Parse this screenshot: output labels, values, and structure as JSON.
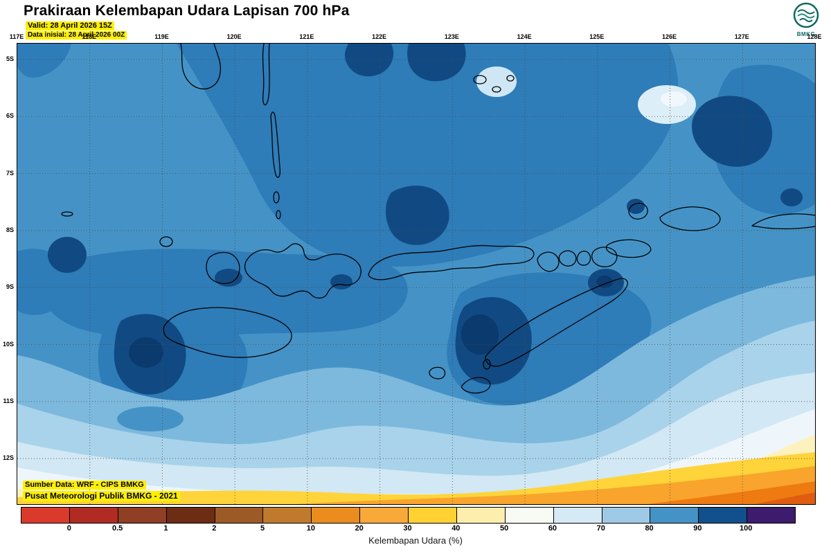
{
  "header": {
    "title": "Prakiraan Kelembapan Udara Lapisan 700 hPa",
    "valid_label": "Valid: 28 April 2026 15Z",
    "init_label": "Data inisial: 28 April 2026 00Z",
    "logo_text": "BMKG"
  },
  "map": {
    "lon_labels": [
      "117E",
      "118E",
      "119E",
      "120E",
      "121E",
      "122E",
      "123E",
      "124E",
      "125E",
      "126E",
      "127E",
      "128E"
    ],
    "lat_labels": [
      "5S",
      "6S",
      "7S",
      "8S",
      "9S",
      "10S",
      "11S",
      "12S"
    ],
    "source_line1": "Sumber Data: WRF - CIPS BMKG",
    "source_line2": "Pusat Meteorologi Publik BMKG - 2021"
  },
  "colorbar": {
    "title": "Kelembapan Udara (%)",
    "tick_labels": [
      "0",
      "0.5",
      "1",
      "2",
      "5",
      "10",
      "20",
      "30",
      "40",
      "50",
      "60",
      "70",
      "80",
      "90",
      "100"
    ],
    "cell_colors": [
      "#d93a2c",
      "#b02c22",
      "#8f3f24",
      "#6d2c14",
      "#9c5a26",
      "#c07a2e",
      "#ea8c1e",
      "#f9a83a",
      "#ffd232",
      "#fdeead",
      "#f7fbf3",
      "#d6eaf5",
      "#9fcae6",
      "#4593c6",
      "#12508d",
      "#3d1c6e"
    ],
    "field_colors": {
      "rh_100_plus": "#0a3a6e",
      "rh_90_100": "#114a82",
      "rh_80_90": "#2e7cb8",
      "rh_70_80": "#4593c6",
      "rh_60_70": "#7db9dd",
      "rh_50_60": "#a9d3ea",
      "rh_40_50": "#d2e8f4",
      "rh_30_40": "#eef6fb",
      "rh_pale_yellow": "#fdf2bd",
      "rh_gold": "#ffd43a",
      "rh_orange": "#f9a42c",
      "rh_deep_orange": "#ee7a12",
      "rh_deepest_orange": "#e05c10"
    }
  }
}
